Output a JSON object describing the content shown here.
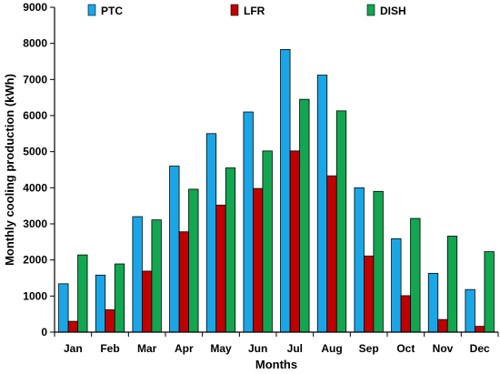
{
  "chart_data": {
    "type": "bar",
    "title": "",
    "xlabel": "Months",
    "ylabel": "Monthly cooling production (kWh)",
    "ylim": [
      0,
      9000
    ],
    "yticks": [
      0,
      1000,
      2000,
      3000,
      4000,
      5000,
      6000,
      7000,
      8000,
      9000
    ],
    "grid": false,
    "legend_position": "top",
    "categories": [
      "Jan",
      "Feb",
      "Mar",
      "Apr",
      "May",
      "Jun",
      "Jul",
      "Aug",
      "Sep",
      "Oct",
      "Nov",
      "Dec"
    ],
    "series": [
      {
        "name": "PTC",
        "color": "#1aa6e6",
        "values": [
          1340,
          1580,
          3200,
          4600,
          5500,
          6100,
          7830,
          7120,
          4000,
          2590,
          1630,
          1180
        ]
      },
      {
        "name": "LFR",
        "color": "#c00000",
        "values": [
          300,
          620,
          1690,
          2780,
          3520,
          3980,
          5020,
          4330,
          2110,
          1010,
          350,
          160
        ]
      },
      {
        "name": "DISH",
        "color": "#12a650",
        "values": [
          2140,
          1890,
          3110,
          3960,
          4550,
          5020,
          6450,
          6130,
          3900,
          3150,
          2660,
          2230
        ]
      }
    ]
  }
}
